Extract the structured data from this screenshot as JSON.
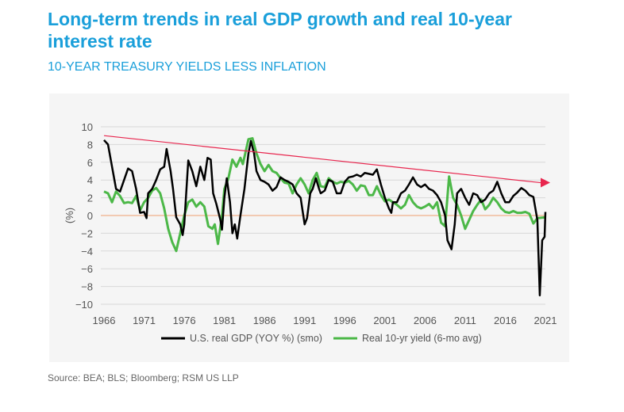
{
  "title": "Long-term trends in real GDP growth and real 10-year interest rate",
  "subtitle": "10-YEAR TREASURY YIELDS LESS INFLATION",
  "source": "Source: BEA; BLS; Bloomberg; RSM US LLP",
  "chart_data": {
    "type": "line",
    "ylabel": "(%)",
    "ylim": [
      -10,
      10
    ],
    "yticks": [
      10,
      8,
      6,
      4,
      2,
      0,
      -2,
      -4,
      -6,
      -8,
      -10
    ],
    "xlim": [
      1966,
      2021
    ],
    "xticks": [
      "1966",
      "1971",
      "1976",
      "1981",
      "1986",
      "1991",
      "1996",
      "2001",
      "2006",
      "2011",
      "2016",
      "2021"
    ],
    "grid": true,
    "legend": "bottom",
    "trend_arrow": {
      "from": [
        1966,
        9
      ],
      "to": [
        2021,
        3.7
      ],
      "color": "#e8264e"
    },
    "zero_line_color": "#f0a070",
    "series": [
      {
        "name": "U.S. real GDP (YOY %) (smo)",
        "color": "#000000",
        "points": [
          [
            1966,
            8.5
          ],
          [
            1966.5,
            8
          ],
          [
            1967,
            5.5
          ],
          [
            1967.5,
            3
          ],
          [
            1968,
            2.7
          ],
          [
            1968.5,
            4
          ],
          [
            1969,
            5.3
          ],
          [
            1969.5,
            5
          ],
          [
            1970,
            3
          ],
          [
            1970.5,
            0.3
          ],
          [
            1971,
            0.4
          ],
          [
            1971.3,
            -0.3
          ],
          [
            1971.5,
            2.5
          ],
          [
            1972,
            3
          ],
          [
            1972.5,
            4
          ],
          [
            1973,
            5.2
          ],
          [
            1973.5,
            5.5
          ],
          [
            1973.8,
            7.5
          ],
          [
            1974.3,
            5
          ],
          [
            1974.6,
            3
          ],
          [
            1975,
            -0.2
          ],
          [
            1975.5,
            -1
          ],
          [
            1975.8,
            -2.2
          ],
          [
            1976,
            -1
          ],
          [
            1976.5,
            6.2
          ],
          [
            1977,
            5
          ],
          [
            1977.5,
            3.3
          ],
          [
            1978,
            5.5
          ],
          [
            1978.5,
            4
          ],
          [
            1978.9,
            6.5
          ],
          [
            1979.3,
            6.3
          ],
          [
            1979.6,
            2.5
          ],
          [
            1980,
            1.3
          ],
          [
            1980.5,
            -0.5
          ],
          [
            1980.7,
            -1.6
          ],
          [
            1981,
            2
          ],
          [
            1981.3,
            4.2
          ],
          [
            1981.7,
            1.5
          ],
          [
            1982,
            -2
          ],
          [
            1982.3,
            -1
          ],
          [
            1982.6,
            -2.6
          ],
          [
            1983,
            0
          ],
          [
            1983.5,
            3
          ],
          [
            1984,
            7
          ],
          [
            1984.3,
            8.4
          ],
          [
            1984.7,
            7
          ],
          [
            1985,
            5
          ],
          [
            1985.5,
            4
          ],
          [
            1986,
            3.8
          ],
          [
            1986.5,
            3.5
          ],
          [
            1987,
            2.8
          ],
          [
            1987.5,
            3.2
          ],
          [
            1988,
            4.3
          ],
          [
            1988.5,
            4
          ],
          [
            1989,
            3.8
          ],
          [
            1989.5,
            3.5
          ],
          [
            1990,
            2.5
          ],
          [
            1990.5,
            2
          ],
          [
            1991,
            -1
          ],
          [
            1991.3,
            -0.3
          ],
          [
            1991.7,
            2.5
          ],
          [
            1992,
            3
          ],
          [
            1992.4,
            4.2
          ],
          [
            1992.8,
            3
          ],
          [
            1993,
            2.5
          ],
          [
            1993.5,
            2.8
          ],
          [
            1994,
            4
          ],
          [
            1994.5,
            3.8
          ],
          [
            1995,
            2.5
          ],
          [
            1995.5,
            2.5
          ],
          [
            1996,
            3.8
          ],
          [
            1996.5,
            4.3
          ],
          [
            1997,
            4.4
          ],
          [
            1997.5,
            4.6
          ],
          [
            1998,
            4.4
          ],
          [
            1998.5,
            4.8
          ],
          [
            1999,
            4.7
          ],
          [
            1999.5,
            4.6
          ],
          [
            2000,
            5.2
          ],
          [
            2000.5,
            3.5
          ],
          [
            2001,
            2
          ],
          [
            2001.5,
            0.8
          ],
          [
            2001.8,
            0.3
          ],
          [
            2002,
            1.5
          ],
          [
            2002.5,
            1.5
          ],
          [
            2003,
            2.5
          ],
          [
            2003.5,
            2.8
          ],
          [
            2004,
            3.5
          ],
          [
            2004.5,
            4.3
          ],
          [
            2005,
            3.5
          ],
          [
            2005.5,
            3.2
          ],
          [
            2006,
            3.5
          ],
          [
            2006.5,
            3
          ],
          [
            2007,
            2.8
          ],
          [
            2007.5,
            2.3
          ],
          [
            2008,
            1.5
          ],
          [
            2008.5,
            0
          ],
          [
            2008.8,
            -2.8
          ],
          [
            2009.3,
            -3.8
          ],
          [
            2009.7,
            -1
          ],
          [
            2010,
            2.5
          ],
          [
            2010.5,
            3
          ],
          [
            2011,
            2
          ],
          [
            2011.5,
            1.2
          ],
          [
            2012,
            2.5
          ],
          [
            2012.5,
            2.3
          ],
          [
            2013,
            1.5
          ],
          [
            2013.5,
            1.8
          ],
          [
            2014,
            2.5
          ],
          [
            2014.5,
            2.8
          ],
          [
            2015,
            3.8
          ],
          [
            2015.5,
            2.5
          ],
          [
            2016,
            1.5
          ],
          [
            2016.5,
            1.5
          ],
          [
            2017,
            2.2
          ],
          [
            2017.5,
            2.6
          ],
          [
            2018,
            3.1
          ],
          [
            2018.5,
            2.8
          ],
          [
            2019,
            2.3
          ],
          [
            2019.5,
            2.1
          ],
          [
            2020,
            -0.5
          ],
          [
            2020.3,
            -9
          ],
          [
            2020.6,
            -2.8
          ],
          [
            2020.9,
            -2.4
          ],
          [
            2021,
            0.4
          ]
        ]
      },
      {
        "name": "Real 10-yr yield (6-mo avg)",
        "color": "#4cb848",
        "points": [
          [
            1966,
            2.7
          ],
          [
            1966.5,
            2.5
          ],
          [
            1967,
            1.5
          ],
          [
            1967.5,
            2.7
          ],
          [
            1968,
            2.2
          ],
          [
            1968.5,
            1.4
          ],
          [
            1969,
            1.5
          ],
          [
            1969.5,
            1.4
          ],
          [
            1970,
            2.2
          ],
          [
            1970.5,
            0.6
          ],
          [
            1971,
            1.5
          ],
          [
            1971.5,
            2
          ],
          [
            1972,
            2.8
          ],
          [
            1972.5,
            3.1
          ],
          [
            1973,
            2.5
          ],
          [
            1973.5,
            0.8
          ],
          [
            1974,
            -1.5
          ],
          [
            1974.5,
            -3
          ],
          [
            1975,
            -4
          ],
          [
            1975.5,
            -2
          ],
          [
            1976,
            0
          ],
          [
            1976.5,
            1.5
          ],
          [
            1977,
            1.8
          ],
          [
            1977.5,
            1
          ],
          [
            1978,
            1.5
          ],
          [
            1978.5,
            1
          ],
          [
            1979,
            -1.2
          ],
          [
            1979.5,
            -1.5
          ],
          [
            1979.8,
            -1
          ],
          [
            1980.2,
            -3.2
          ],
          [
            1980.7,
            0
          ],
          [
            1981,
            3
          ],
          [
            1981.5,
            4.2
          ],
          [
            1982,
            6.3
          ],
          [
            1982.5,
            5.5
          ],
          [
            1983,
            6.5
          ],
          [
            1983.3,
            5.8
          ],
          [
            1984,
            8.6
          ],
          [
            1984.5,
            8.7
          ],
          [
            1985,
            7
          ],
          [
            1985.5,
            5.8
          ],
          [
            1986,
            5
          ],
          [
            1986.5,
            5.7
          ],
          [
            1987,
            5
          ],
          [
            1987.5,
            4.8
          ],
          [
            1988,
            4.2
          ],
          [
            1988.5,
            3.7
          ],
          [
            1989,
            3.6
          ],
          [
            1989.5,
            2.5
          ],
          [
            1990,
            3.5
          ],
          [
            1990.5,
            4.2
          ],
          [
            1991,
            3.5
          ],
          [
            1991.5,
            2.5
          ],
          [
            1992,
            4
          ],
          [
            1992.5,
            4.8
          ],
          [
            1993,
            3.3
          ],
          [
            1993.5,
            3.2
          ],
          [
            1994,
            4.2
          ],
          [
            1994.5,
            3.8
          ],
          [
            1995,
            3.6
          ],
          [
            1995.5,
            3.8
          ],
          [
            1996,
            3.7
          ],
          [
            1996.5,
            3.9
          ],
          [
            1997,
            3.5
          ],
          [
            1997.5,
            2.8
          ],
          [
            1998,
            3.4
          ],
          [
            1998.5,
            3.3
          ],
          [
            1999,
            2.3
          ],
          [
            1999.5,
            2.3
          ],
          [
            2000,
            3.3
          ],
          [
            2000.5,
            2.3
          ],
          [
            2001,
            1.6
          ],
          [
            2001.5,
            1.8
          ],
          [
            2002,
            1.5
          ],
          [
            2002.5,
            1.2
          ],
          [
            2003,
            0.8
          ],
          [
            2003.5,
            1.2
          ],
          [
            2004,
            2.3
          ],
          [
            2004.5,
            1.5
          ],
          [
            2005,
            1
          ],
          [
            2005.5,
            0.8
          ],
          [
            2006,
            1
          ],
          [
            2006.5,
            1.3
          ],
          [
            2007,
            0.8
          ],
          [
            2007.5,
            1.5
          ],
          [
            2008,
            -0.8
          ],
          [
            2008.5,
            -1.2
          ],
          [
            2009,
            4.4
          ],
          [
            2009.5,
            2
          ],
          [
            2010,
            1.2
          ],
          [
            2010.5,
            0
          ],
          [
            2011,
            -1.5
          ],
          [
            2011.5,
            -0.5
          ],
          [
            2012,
            0.5
          ],
          [
            2012.5,
            1.2
          ],
          [
            2013,
            1.8
          ],
          [
            2013.5,
            0.7
          ],
          [
            2014,
            1.2
          ],
          [
            2014.5,
            2
          ],
          [
            2015,
            1.5
          ],
          [
            2015.5,
            0.8
          ],
          [
            2016,
            0.4
          ],
          [
            2016.5,
            0.3
          ],
          [
            2017,
            0.5
          ],
          [
            2017.5,
            0.3
          ],
          [
            2018,
            0.3
          ],
          [
            2018.5,
            0.4
          ],
          [
            2019,
            0.2
          ],
          [
            2019.5,
            -0.9
          ],
          [
            2020,
            -0.3
          ],
          [
            2021,
            -0.2
          ]
        ]
      }
    ]
  }
}
